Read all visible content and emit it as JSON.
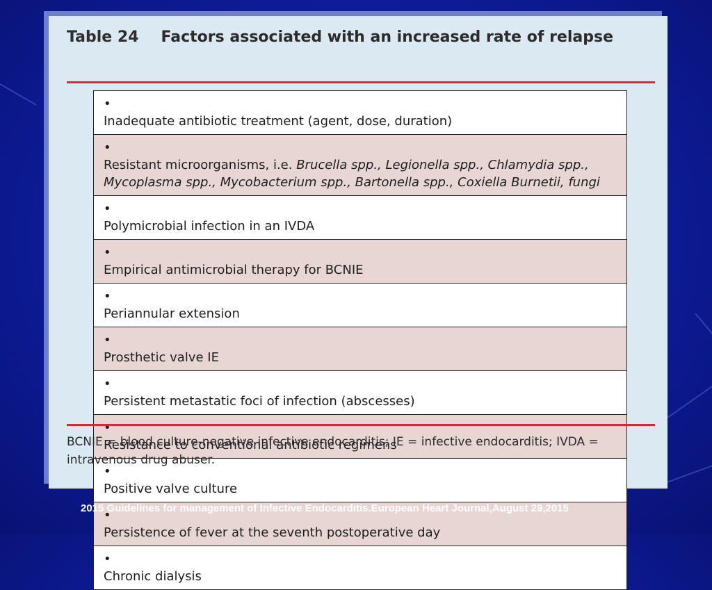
{
  "slide": {
    "citation": "2015 Guidelines for management of Infective Endocarditis.European Heart Journal,August 29,2015"
  },
  "table": {
    "label": "Table 24",
    "title": "Factors associated with an increased rate of relapse",
    "rows": [
      {
        "text": "Inadequate antibiotic treatment (agent, dose, duration)"
      },
      {
        "text_prefix": "Resistant microorganisms, i.e. ",
        "text_italic": "Brucella spp., Legionella spp., Chlamydia spp., Mycoplasma spp., Mycobacterium spp., Bartonella spp., Coxiella Burnetii, fungi"
      },
      {
        "text": "Polymicrobial infection in an IVDA"
      },
      {
        "text": "Empirical antimicrobial therapy for BCNIE"
      },
      {
        "text": "Periannular extension"
      },
      {
        "text": "Prosthetic valve IE"
      },
      {
        "text": "Persistent metastatic foci of infection (abscesses)"
      },
      {
        "text": "Resistance to conventional antibiotic regimens"
      },
      {
        "text": "Positive valve culture"
      },
      {
        "text": "Persistence of fever at the seventh postoperative day"
      },
      {
        "text": "Chronic dialysis"
      }
    ],
    "footnote": "BCNIE = blood culture-negative infective endocarditis; IE = infective endocarditis; IVDA = intravenous drug abuser."
  },
  "colors": {
    "background": "#0e1c9a",
    "rule": "#d8263a",
    "row_shaded": "#e7d6d3",
    "doc_background": "#dbe9f2"
  }
}
